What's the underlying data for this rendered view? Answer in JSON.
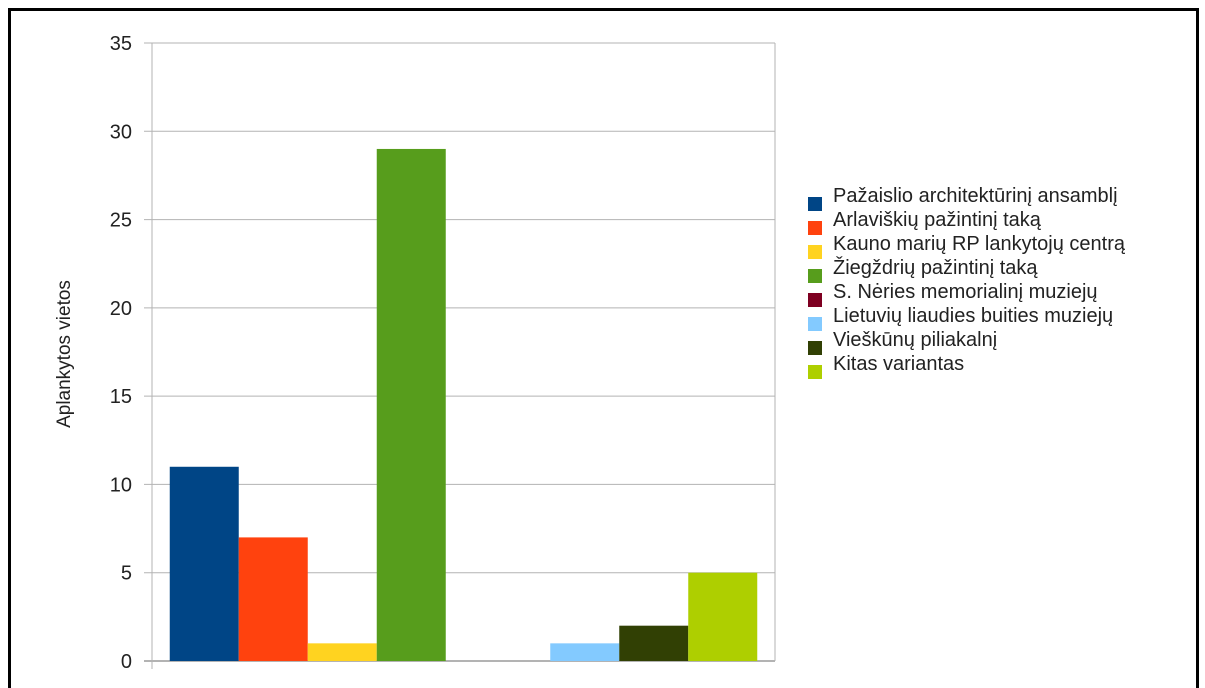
{
  "chart_data": {
    "type": "bar",
    "ylabel": "Aplankytos vietos",
    "ylim": [
      0,
      35
    ],
    "yticks": [
      0,
      5,
      10,
      15,
      20,
      25,
      30,
      35
    ],
    "grid": true,
    "legend_position": "right",
    "categories": [
      "",
      ""
    ],
    "series": [
      {
        "name": "Pažaislio architektūrinį ansamblį",
        "color": "#004586",
        "values": [
          11,
          null
        ]
      },
      {
        "name": "Arlaviškių pažintinį taką",
        "color": "#ff420e",
        "values": [
          7,
          null
        ]
      },
      {
        "name": "Kauno marių RP lankytojų centrą",
        "color": "#ffd320",
        "values": [
          1,
          null
        ]
      },
      {
        "name": "Žiegždrių pažintinį taką",
        "color": "#579d1c",
        "values": [
          29,
          null
        ]
      },
      {
        "name": "S. Nėries memorialinį muziejų",
        "color": "#7e0021",
        "values": [
          null,
          0
        ]
      },
      {
        "name": "Lietuvių liaudies buities muziejų",
        "color": "#83caff",
        "values": [
          null,
          1
        ]
      },
      {
        "name": "Vieškūnų piliakalnį",
        "color": "#314004",
        "values": [
          null,
          2
        ]
      },
      {
        "name": "Kitas variantas",
        "color": "#aecf00",
        "values": [
          null,
          5
        ]
      }
    ]
  }
}
